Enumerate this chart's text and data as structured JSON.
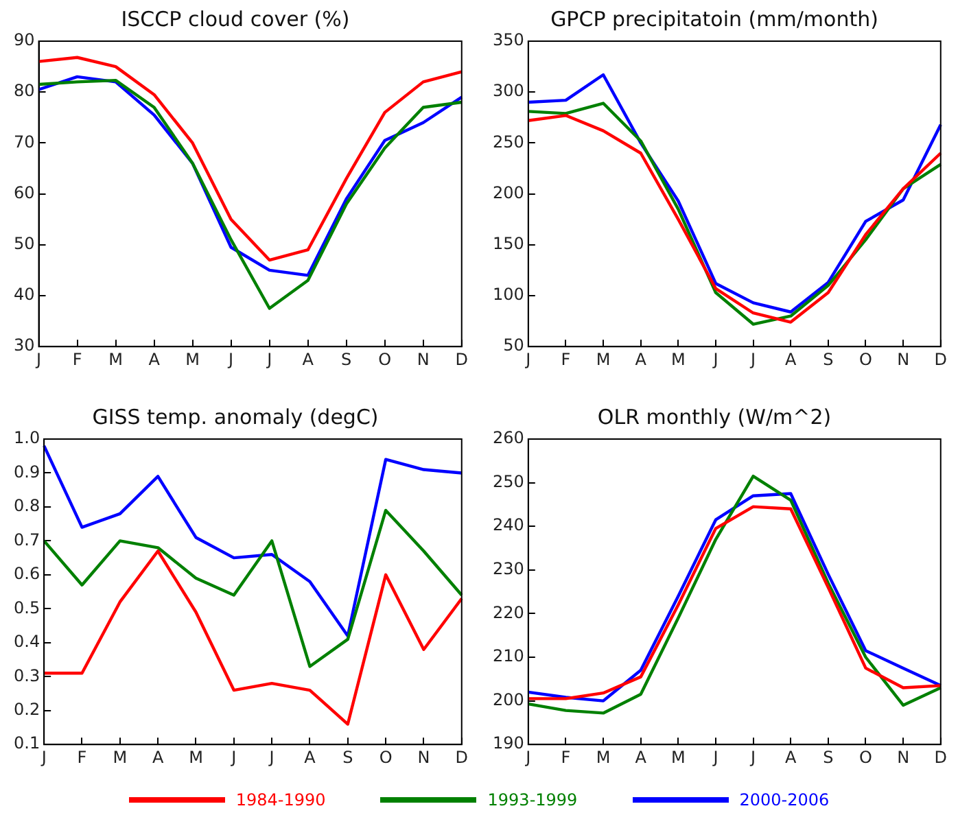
{
  "chart_data": [
    {
      "type": "line",
      "title": "ISCCP cloud cover (%)",
      "categories": [
        "J",
        "F",
        "M",
        "A",
        "M",
        "J",
        "J",
        "A",
        "S",
        "O",
        "N",
        "D"
      ],
      "ylim": [
        30,
        90
      ],
      "yticks": [
        30,
        40,
        50,
        60,
        70,
        80,
        90
      ],
      "grid": false,
      "series": [
        {
          "color": "#ff0000",
          "values": [
            86,
            86.8,
            85,
            79.5,
            70,
            55,
            47,
            49,
            63,
            76,
            82,
            84
          ]
        },
        {
          "color": "#008000",
          "values": [
            81.5,
            82,
            82.3,
            77,
            66,
            51,
            37.5,
            43,
            58,
            69,
            77,
            78
          ]
        },
        {
          "color": "#0000ff",
          "values": [
            80.5,
            83,
            82,
            75.5,
            66,
            49.5,
            45,
            44,
            59,
            70.5,
            74,
            79
          ]
        }
      ]
    },
    {
      "type": "line",
      "title": "GPCP precipitatoin (mm/month)",
      "categories": [
        "J",
        "F",
        "M",
        "A",
        "M",
        "J",
        "J",
        "A",
        "S",
        "O",
        "N",
        "D"
      ],
      "ylim": [
        50,
        350
      ],
      "yticks": [
        50,
        100,
        150,
        200,
        250,
        300,
        350
      ],
      "grid": false,
      "series": [
        {
          "color": "#ff0000",
          "values": [
            272,
            277,
            262,
            240,
            175,
            107,
            83,
            74,
            103,
            160,
            205,
            240
          ]
        },
        {
          "color": "#008000",
          "values": [
            281,
            279,
            289,
            252,
            185,
            103,
            72,
            80,
            110,
            155,
            205,
            229
          ]
        },
        {
          "color": "#0000ff",
          "values": [
            290,
            292,
            317,
            250,
            193,
            112,
            93,
            84,
            113,
            173,
            194,
            268
          ]
        }
      ]
    },
    {
      "type": "line",
      "title": "GISS temp. anomaly (degC)",
      "categories": [
        "J",
        "F",
        "M",
        "A",
        "M",
        "J",
        "J",
        "A",
        "S",
        "O",
        "N",
        "D"
      ],
      "ylim": [
        0.1,
        1.0
      ],
      "yticks": [
        {
          "value": 0.1,
          "label": "0.1"
        },
        {
          "value": 0.2,
          "label": "0.2"
        },
        {
          "value": 0.3,
          "label": "0.3"
        },
        {
          "value": 0.4,
          "label": "0.4"
        },
        {
          "value": 0.5,
          "label": "0.5"
        },
        {
          "value": 0.6,
          "label": "0.6"
        },
        {
          "value": 0.7,
          "label": "0.7"
        },
        {
          "value": 0.8,
          "label": "0.8"
        },
        {
          "value": 0.9,
          "label": "0.9"
        },
        {
          "value": 1.0,
          "label": "1.0"
        }
      ],
      "grid": false,
      "legend": "bottom",
      "series": [
        {
          "name": "1984-1990",
          "color": "#ff0000",
          "values": [
            0.31,
            0.31,
            0.52,
            0.67,
            0.49,
            0.26,
            0.28,
            0.26,
            0.16,
            0.6,
            0.38,
            0.53
          ]
        },
        {
          "name": "1993-1999",
          "color": "#008000",
          "values": [
            0.7,
            0.57,
            0.7,
            0.68,
            0.59,
            0.54,
            0.7,
            0.33,
            0.41,
            0.79,
            0.67,
            0.54
          ]
        },
        {
          "name": "2000-2006",
          "color": "#0000ff",
          "values": [
            0.98,
            0.74,
            0.78,
            0.89,
            0.71,
            0.65,
            0.66,
            0.58,
            0.42,
            0.94,
            0.91,
            0.9
          ]
        }
      ]
    },
    {
      "type": "line",
      "title": "OLR monthly (W/m^2)",
      "categories": [
        "J",
        "F",
        "M",
        "A",
        "M",
        "J",
        "J",
        "A",
        "S",
        "O",
        "N",
        "D"
      ],
      "ylim": [
        190,
        260
      ],
      "yticks": [
        190,
        200,
        210,
        220,
        230,
        240,
        250,
        260
      ],
      "grid": false,
      "series": [
        {
          "color": "#ff0000",
          "values": [
            200.5,
            200.5,
            201.8,
            205.5,
            222,
            239.5,
            244.5,
            244,
            226,
            207.5,
            203,
            203.5
          ]
        },
        {
          "color": "#008000",
          "values": [
            199.3,
            197.8,
            197.2,
            201.5,
            219,
            237,
            251.5,
            246,
            227,
            210,
            199,
            203
          ]
        },
        {
          "color": "#0000ff",
          "values": [
            202,
            200.8,
            200,
            207,
            224,
            241.5,
            247,
            247.5,
            229,
            211.5,
            207.5,
            203.5
          ]
        }
      ]
    }
  ]
}
